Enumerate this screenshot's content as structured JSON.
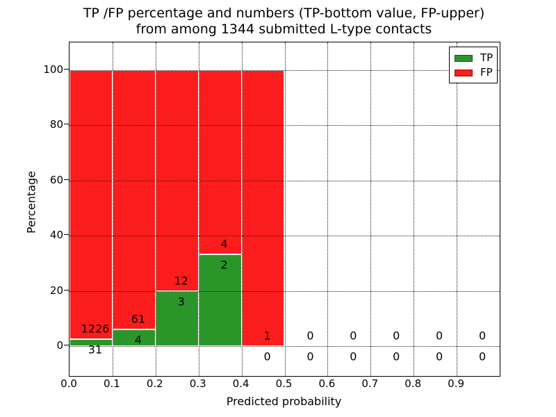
{
  "title_line1": "TP /FP percentage and numbers (TP-bottom value, FP-upper)",
  "title_line2": "from among 1344 submitted L-type contacts",
  "axes": {
    "ylabel": "Percentage",
    "xlabel": "Predicted probability",
    "y_ticks": [
      0,
      20,
      40,
      60,
      80,
      100
    ],
    "x_ticks": [
      "0.0",
      "0.1",
      "0.2",
      "0.3",
      "0.4",
      "0.5",
      "0.6",
      "0.7",
      "0.8",
      "0.9"
    ]
  },
  "legend": {
    "items": [
      {
        "label": "TP",
        "color": "#2a962a"
      },
      {
        "label": "FP",
        "color": "#fb1d1d"
      }
    ]
  },
  "colors": {
    "tp_green": "#2a962a",
    "fp_red": "#fb1d1d",
    "grid": "#1a1a1a"
  },
  "chart_data": {
    "type": "bar",
    "stacked": true,
    "title": "TP /FP percentage and numbers (TP-bottom value, FP-upper) from among 1344 submitted L-type contacts",
    "xlabel": "Predicted probability",
    "ylabel": "Percentage",
    "bin_width": 0.1,
    "bin_starts": [
      0.0,
      0.1,
      0.2,
      0.3,
      0.4,
      0.5,
      0.6,
      0.7,
      0.8,
      0.9
    ],
    "categories": [
      "0.0-0.1",
      "0.1-0.2",
      "0.2-0.3",
      "0.3-0.4",
      "0.4-0.5",
      "0.5-0.6",
      "0.6-0.7",
      "0.7-0.8",
      "0.8-0.9",
      "0.9-1.0"
    ],
    "series": [
      {
        "name": "TP",
        "values": [
          31,
          4,
          3,
          2,
          0,
          0,
          0,
          0,
          0,
          0
        ]
      },
      {
        "name": "FP",
        "values": [
          1226,
          61,
          12,
          4,
          1,
          0,
          0,
          0,
          0,
          0
        ]
      }
    ],
    "total_submitted": 1344,
    "units": "percent of bin stacked to 100 where bin non-empty",
    "xlim": [
      0.0,
      1.0
    ],
    "ylim": [
      -11,
      111
    ],
    "grid": "dotted",
    "legend_position": "upper right"
  }
}
